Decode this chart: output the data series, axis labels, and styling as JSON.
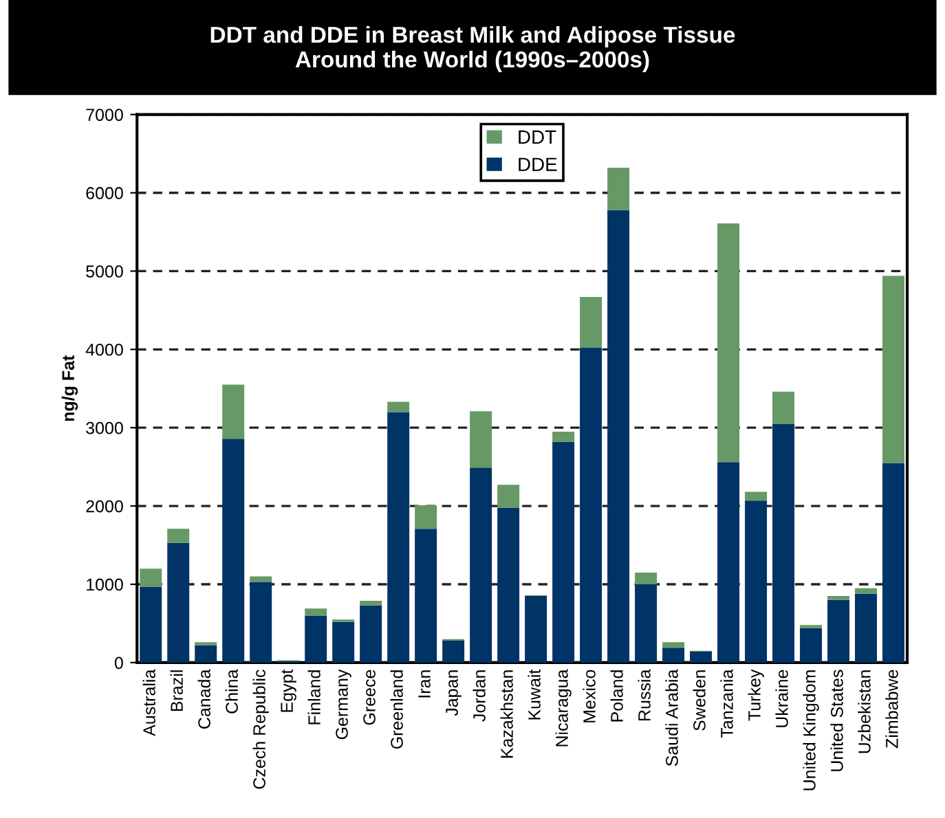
{
  "chart_data": {
    "type": "bar",
    "title": "DDT and DDE in Breast Milk and Adipose Tissue\nAround the World (1990s–2000s)",
    "ylabel": "ng/g Fat",
    "categories": [
      "Australia",
      "Brazil",
      "Canada",
      "China",
      "Czech Republic",
      "Egypt",
      "Finland",
      "Germany",
      "Greece",
      "Greenland",
      "Iran",
      "Japan",
      "Jordan",
      "Kazakhstan",
      "Kuwait",
      "Nicaragua",
      "Mexico",
      "Poland",
      "Russia",
      "Saudi Arabia",
      "Sweden",
      "Tanzania",
      "Turkey",
      "Ukraine",
      "United Kingdom",
      "United States",
      "Uzbekistan",
      "Zimbabwe"
    ],
    "stacked": true,
    "series": [
      {
        "name": "DDE",
        "color": "#003366",
        "values": [
          970,
          1530,
          220,
          2860,
          1030,
          20,
          600,
          520,
          730,
          3200,
          1710,
          280,
          2490,
          1980,
          850,
          2820,
          4020,
          5780,
          1000,
          190,
          140,
          2560,
          2070,
          3050,
          440,
          800,
          880,
          2550
        ]
      },
      {
        "name": "DDT",
        "color": "#669966",
        "values": [
          230,
          180,
          40,
          690,
          70,
          10,
          90,
          30,
          60,
          130,
          300,
          20,
          720,
          290,
          10,
          130,
          650,
          540,
          150,
          70,
          10,
          3050,
          110,
          410,
          40,
          50,
          70,
          2390
        ]
      }
    ],
    "ylim": [
      0,
      7000
    ],
    "yticks": [
      0,
      1000,
      2000,
      3000,
      4000,
      5000,
      6000,
      7000
    ],
    "grid": "y",
    "legend": "top"
  }
}
